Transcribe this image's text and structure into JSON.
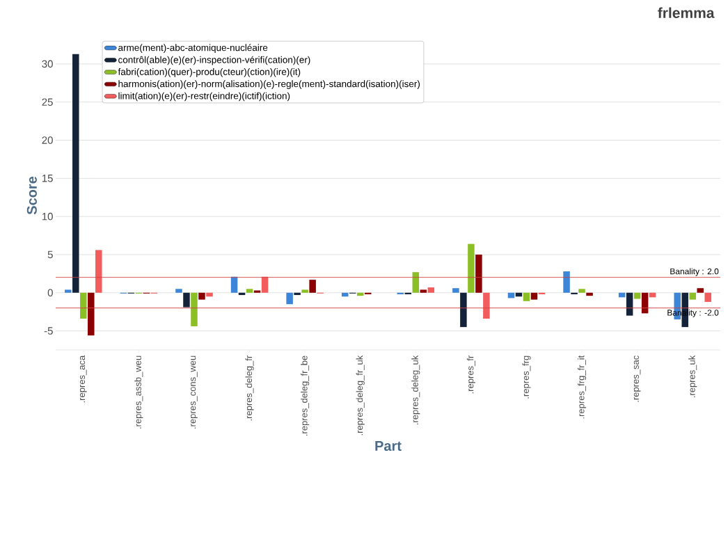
{
  "chart_data": {
    "type": "bar",
    "title": "frlemma",
    "xlabel": "Part",
    "ylabel": "Score",
    "categories": [
      ".repres_aca",
      ".repres_assb_weu",
      ".repres_cons_weu",
      ".repres_deleg_fr",
      ".repres_deleg_fr_be",
      ".repres_deleg_fr_uk",
      ".repres_deleg_uk",
      ".repres_fr",
      ".repres_frg",
      ".repres_frg_fr_it",
      ".repres_sac",
      ".repres_uk"
    ],
    "series": [
      {
        "name": "arme(ment)-abc-atomique-nucléaire",
        "color": "#3d85d6",
        "values": [
          0.4,
          -0.1,
          0.5,
          2.1,
          -1.5,
          -0.5,
          -0.2,
          0.6,
          -0.7,
          2.8,
          -0.6,
          -3.5
        ]
      },
      {
        "name": "contrôl(able)(e)(er)-inspection-vérifi(cation)(er)",
        "color": "#14233a",
        "values": [
          31.3,
          -0.1,
          -1.9,
          -0.3,
          -0.3,
          -0.1,
          -0.2,
          -4.5,
          -0.5,
          -0.2,
          -3.0,
          -4.5
        ]
      },
      {
        "name": "fabri(cation)(quer)-produ(cteur)(ction)(ire)(it)",
        "color": "#8cbf26",
        "values": [
          -3.4,
          -0.1,
          -4.4,
          0.5,
          0.4,
          -0.4,
          2.7,
          6.4,
          -1.1,
          0.5,
          -0.8,
          -0.9
        ]
      },
      {
        "name": "harmonis(ation)(er)-norm(alisation)(e)-regle(ment)-standard(isation)(iser)",
        "color": "#8b0000",
        "values": [
          -5.6,
          -0.1,
          -0.9,
          0.3,
          1.7,
          -0.2,
          0.4,
          5.0,
          -0.9,
          -0.4,
          -2.7,
          0.6
        ]
      },
      {
        "name": "limit(ation)(e)(er)-restr(eindre)(ictif)(iction)",
        "color": "#f25c5c",
        "values": [
          5.6,
          -0.1,
          -0.5,
          2.1,
          -0.1,
          0,
          0.7,
          -3.4,
          -0.2,
          0,
          -0.6,
          -1.2
        ]
      }
    ],
    "ylim": [
      -7.5,
      33
    ],
    "yticks": [
      -5,
      0,
      5,
      10,
      15,
      20,
      25,
      30
    ],
    "grid": "y",
    "legend": "top left",
    "ref_lines": [
      {
        "axis": "y",
        "value": 2,
        "label": "Banality : 2.0",
        "color": "#d04040"
      },
      {
        "axis": "y",
        "value": -2,
        "label": "Banality : -2.0",
        "color": "#d04040"
      }
    ]
  }
}
